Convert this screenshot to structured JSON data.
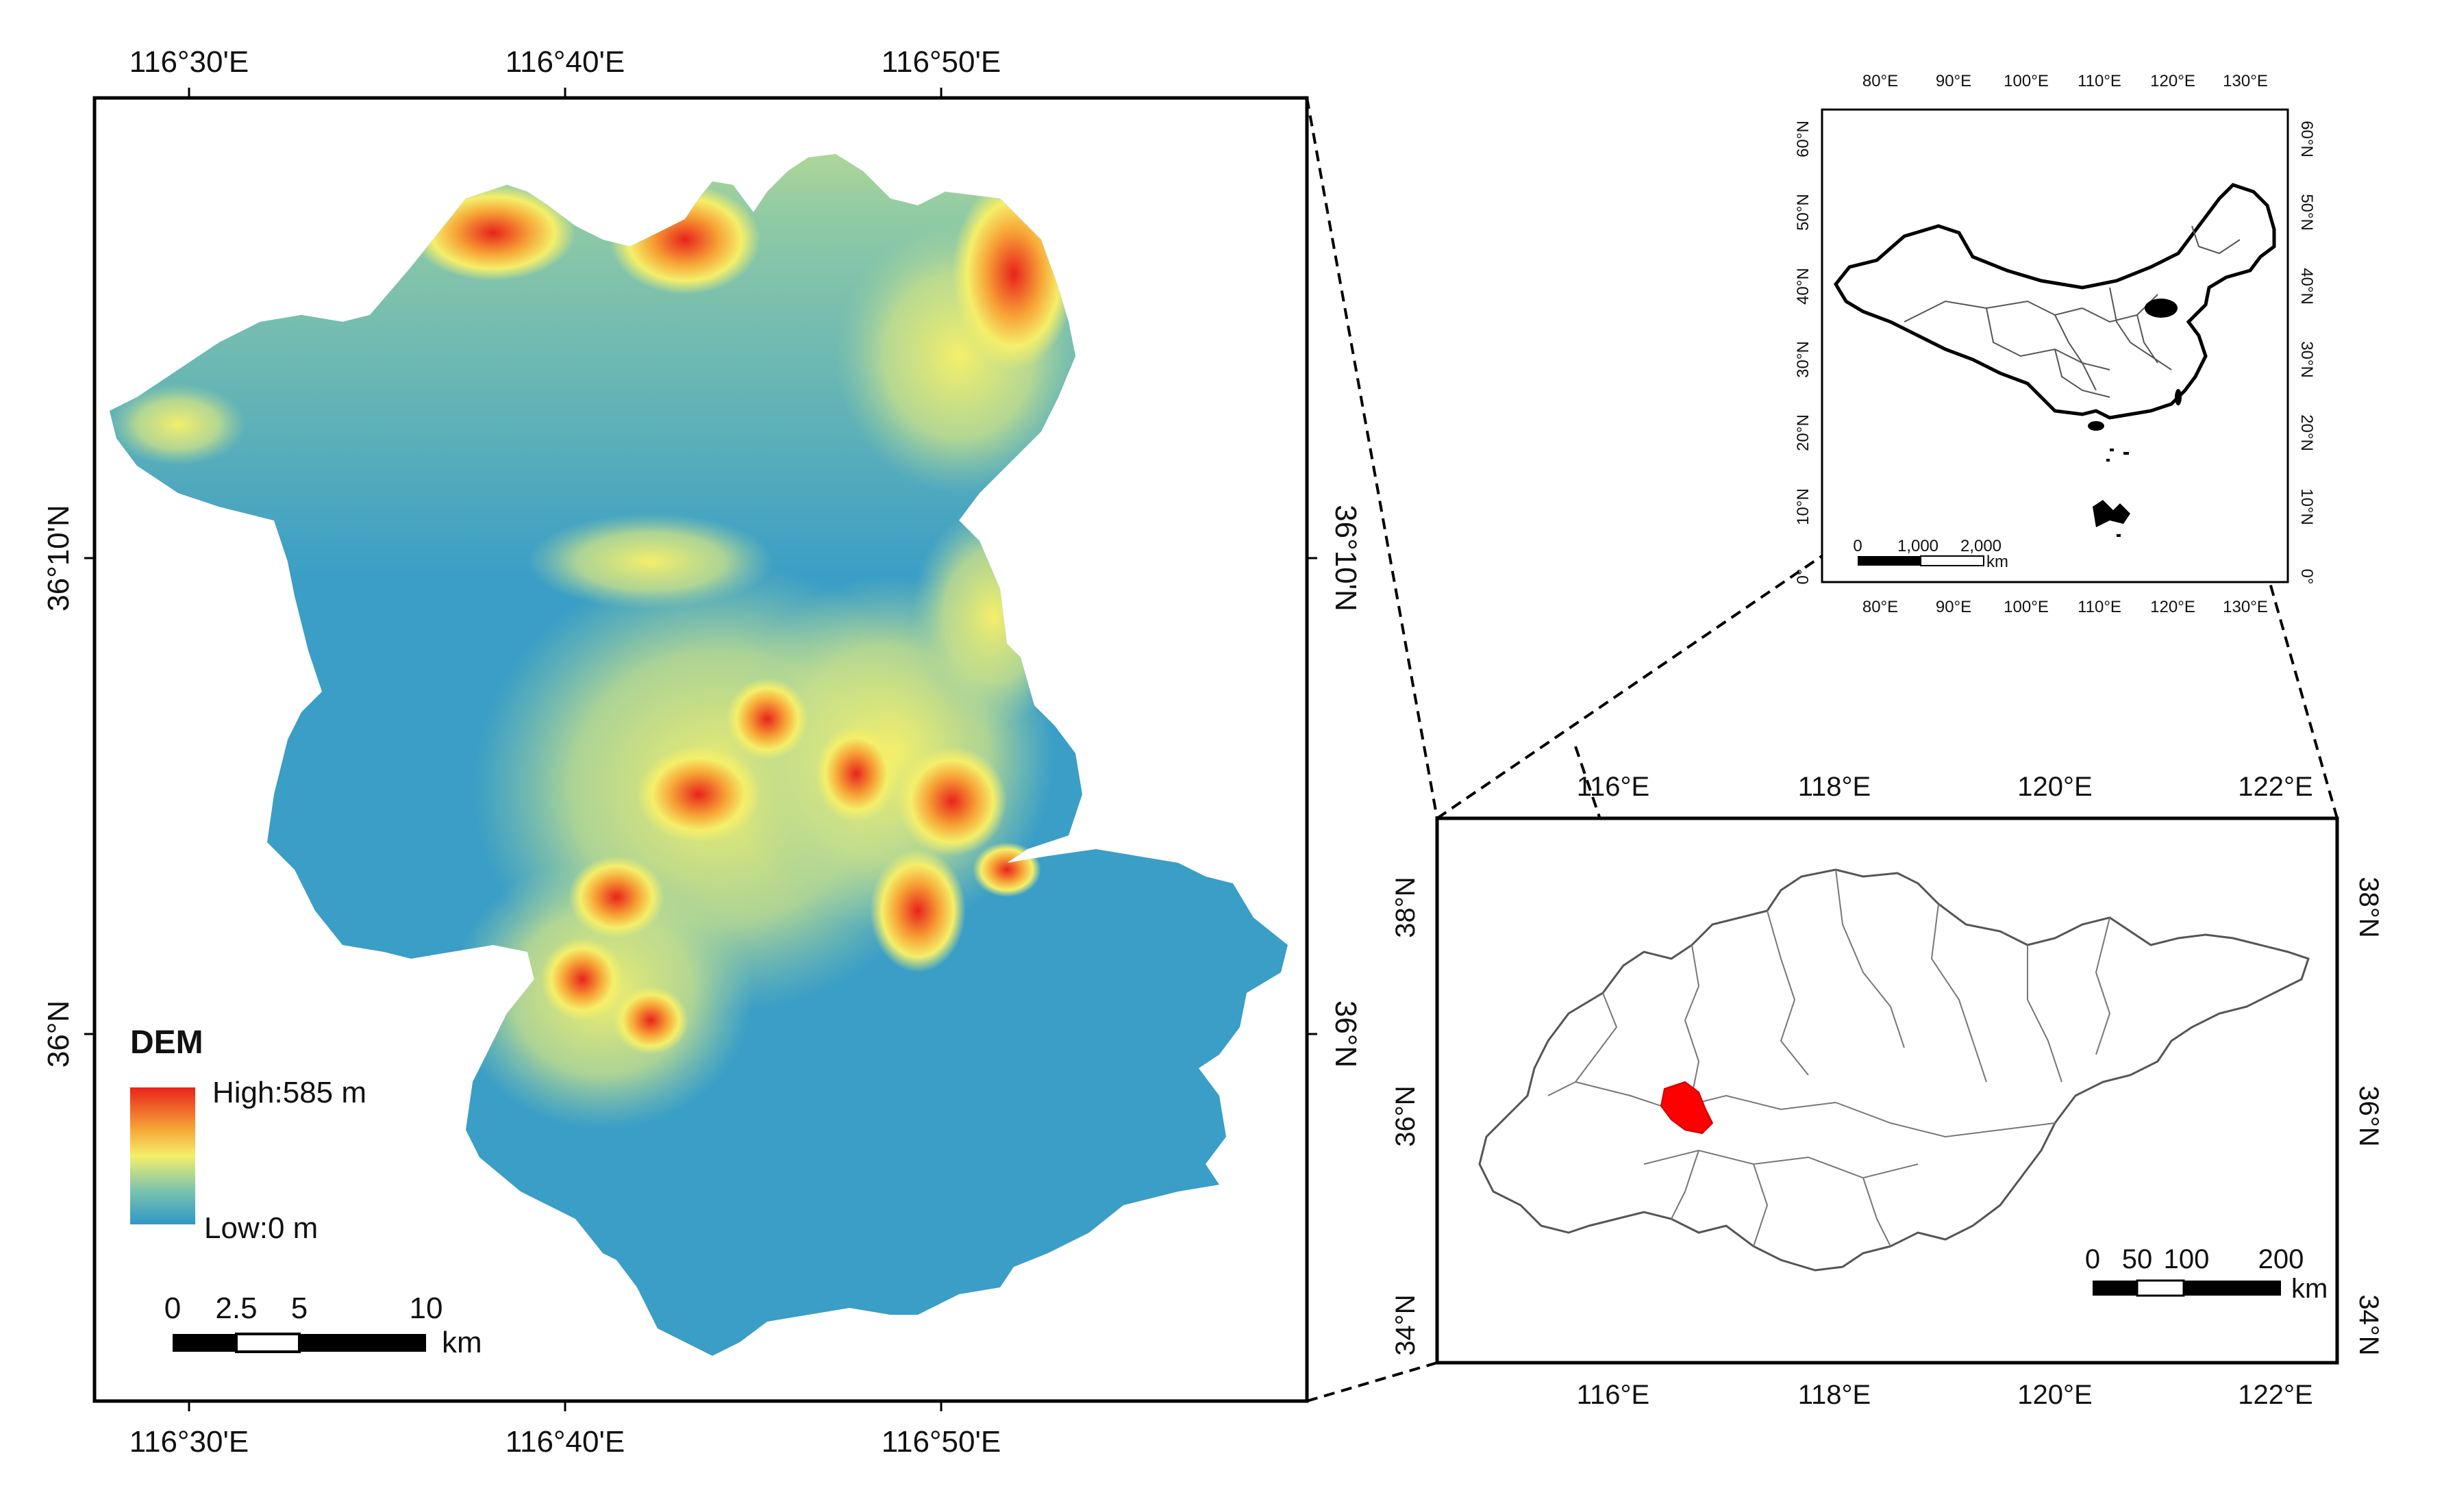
{
  "colors": {
    "dem_high": "#e8231b",
    "dem_mid_high": "#f7a436",
    "dem_mid": "#f4ef6a",
    "dem_mid_low": "#7cc4ad",
    "dem_low": "#2f97c7",
    "study_area": "#ff0000",
    "frame": "#000000"
  },
  "main_map": {
    "top_ticks": [
      "116°30'E",
      "116°40'E",
      "116°50'E"
    ],
    "bottom_ticks": [
      "116°30'E",
      "116°40'E",
      "116°50'E"
    ],
    "left_ticks": [
      "36°10'N",
      "36°N"
    ],
    "right_ticks": [
      "36°10'N",
      "36°N"
    ],
    "legend": {
      "title": "DEM",
      "high": "High:585 m",
      "low": "Low:0 m"
    },
    "scalebar": {
      "labels": [
        "0",
        "2.5",
        "5",
        "10"
      ],
      "unit": "km"
    }
  },
  "china_map": {
    "top_ticks": [
      "80°E",
      "90°E",
      "100°E",
      "110°E",
      "120°E",
      "130°E"
    ],
    "bottom_ticks": [
      "80°E",
      "90°E",
      "100°E",
      "110°E",
      "120°E",
      "130°E"
    ],
    "left_ticks": [
      "60°N",
      "50°N",
      "40°N",
      "30°N",
      "20°N",
      "10°N",
      "0°"
    ],
    "right_ticks": [
      "60°N",
      "50°N",
      "40°N",
      "30°N",
      "20°N",
      "10°N",
      "0°"
    ],
    "scalebar": {
      "labels": [
        "0",
        "1,000",
        "2,000"
      ],
      "unit": "km"
    }
  },
  "shandong_map": {
    "top_ticks": [
      "116°E",
      "118°E",
      "120°E",
      "122°E"
    ],
    "bottom_ticks": [
      "116°E",
      "118°E",
      "120°E",
      "122°E"
    ],
    "left_ticks": [
      "38°N",
      "36°N",
      "34°N"
    ],
    "right_ticks": [
      "38°N",
      "36°N",
      "34°N"
    ],
    "scalebar": {
      "labels": [
        "0",
        "50",
        "100",
        "200"
      ],
      "unit": "km"
    }
  }
}
